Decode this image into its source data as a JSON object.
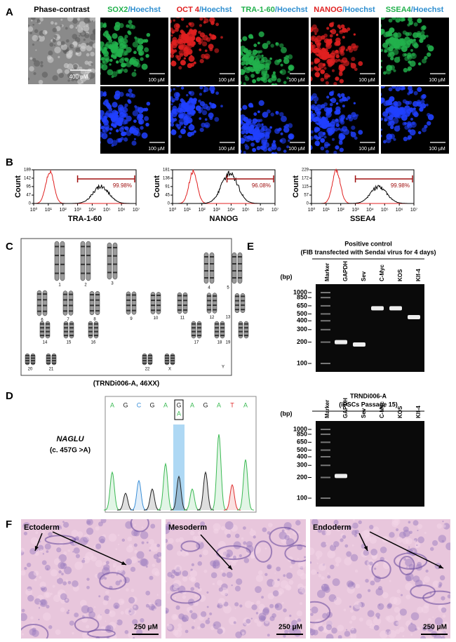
{
  "panel_labels": [
    "A",
    "B",
    "C",
    "D",
    "E",
    "F"
  ],
  "immunostaining": {
    "phase_contrast": {
      "title": "Phase-contrast",
      "scale": "400 μM"
    },
    "counterstain_label": "/Hoechst",
    "scale": "100 μM",
    "markers": [
      {
        "name": "SOX2",
        "color": "#22b14c"
      },
      {
        "name": "OCT 4",
        "color": "#e02020"
      },
      {
        "name": "TRA-1-60",
        "color": "#22b14c"
      },
      {
        "name": "NANOG",
        "color": "#e02020"
      },
      {
        "name": "SSEA4",
        "color": "#22b14c"
      }
    ]
  },
  "flow_cytometry": {
    "y_label": "Count",
    "xlim": [
      1,
      10000000
    ],
    "xticks": [
      {
        "value": 1,
        "label": "10⁰"
      },
      {
        "value": 10,
        "label": "10¹"
      },
      {
        "value": 100,
        "label": "10²"
      },
      {
        "value": 1000,
        "label": "10³"
      },
      {
        "value": 10000,
        "label": "10⁴"
      },
      {
        "value": 100000,
        "label": "10⁵"
      },
      {
        "value": 1000000,
        "label": "10⁶"
      },
      {
        "value": 10000000,
        "label": "10⁷"
      }
    ],
    "panels": [
      {
        "x_label": "TRA-1-60",
        "ylim": [
          0,
          189
        ],
        "yticks": [
          0,
          47,
          95,
          142,
          189
        ],
        "gate": "99.98%"
      },
      {
        "x_label": "NANOG",
        "ylim": [
          0,
          181
        ],
        "yticks": [
          0,
          45,
          91,
          136,
          181
        ],
        "gate": "96.08%"
      },
      {
        "x_label": "SSEA4",
        "ylim": [
          0,
          229
        ],
        "yticks": [
          0,
          57,
          115,
          172,
          229
        ],
        "gate": "99.98%"
      }
    ]
  },
  "karyotype": {
    "chromosomes": [
      "1",
      "2",
      "3",
      "4",
      "5",
      "6",
      "7",
      "8",
      "9",
      "10",
      "11",
      "12",
      "13",
      "14",
      "15",
      "16",
      "17",
      "18",
      "19",
      "20",
      "21",
      "22",
      "X",
      "Y"
    ],
    "caption": "(TRNDi006-A, 46XX)"
  },
  "sequencing": {
    "gene": "NAGLU",
    "mutation": "(c. 457G >A)",
    "bases": [
      "A",
      "G",
      "C",
      "G",
      "A",
      "G",
      "A",
      "G",
      "A",
      "T",
      "A"
    ],
    "variant_index": 5,
    "variant_alt": "A"
  },
  "rt_pcr": {
    "bp_label": "(bp)",
    "lanes": [
      "Marker",
      "GAPDH",
      "Sev",
      "C-Myc",
      "KOS",
      "Klf-4"
    ],
    "sizes": [
      "1000",
      "850",
      "650",
      "500",
      "400",
      "300",
      "200",
      "100"
    ],
    "gels": [
      {
        "title": "Positive control",
        "subtitle": "(FIB transfected with Sendai virus for 4 days)"
      },
      {
        "title": "TRNDi006-A",
        "subtitle": "(iPSCs Passage 15)"
      }
    ]
  },
  "teratoma": {
    "scale": "250 μM",
    "layers": [
      "Ectoderm",
      "Mesoderm",
      "Endoderm"
    ]
  }
}
